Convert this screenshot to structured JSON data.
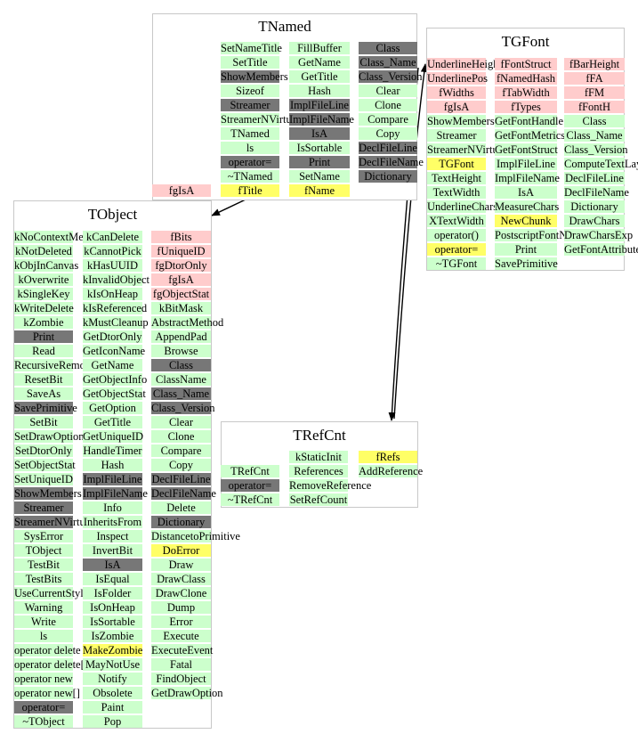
{
  "colors": {
    "public_method": "#ccffcc",
    "protected_method": "#777777",
    "data_member": "#ffcccc",
    "special": "#ffff66",
    "border": "#c8c8c8",
    "arrow": "#000000"
  },
  "fgIsA_floating": {
    "label": "fgIsA",
    "kind": "p"
  },
  "classes": {
    "TNamed": {
      "title": "TNamed",
      "columns": [
        [
          {
            "t": "SetNameTitle",
            "k": "g"
          },
          {
            "t": "SetTitle",
            "k": "g"
          },
          {
            "t": "ShowMembers",
            "k": "d"
          },
          {
            "t": "Sizeof",
            "k": "g"
          },
          {
            "t": "Streamer",
            "k": "d"
          },
          {
            "t": "StreamerNVirtual",
            "k": "g"
          },
          {
            "t": "TNamed",
            "k": "g"
          },
          {
            "t": "ls",
            "k": "g"
          },
          {
            "t": "operator=",
            "k": "d"
          },
          {
            "t": "~TNamed",
            "k": "g"
          },
          {
            "t": "fTitle",
            "k": "y"
          }
        ],
        [
          {
            "t": "FillBuffer",
            "k": "g"
          },
          {
            "t": "GetName",
            "k": "g"
          },
          {
            "t": "GetTitle",
            "k": "g"
          },
          {
            "t": "Hash",
            "k": "g"
          },
          {
            "t": "ImplFileLine",
            "k": "d"
          },
          {
            "t": "ImplFileName",
            "k": "d"
          },
          {
            "t": "IsA",
            "k": "d"
          },
          {
            "t": "IsSortable",
            "k": "g"
          },
          {
            "t": "Print",
            "k": "d"
          },
          {
            "t": "SetName",
            "k": "g"
          },
          {
            "t": "fName",
            "k": "y"
          }
        ],
        [
          {
            "t": "Class",
            "k": "d"
          },
          {
            "t": "Class_Name",
            "k": "d"
          },
          {
            "t": "Class_Version",
            "k": "d"
          },
          {
            "t": "Clear",
            "k": "g"
          },
          {
            "t": "Clone",
            "k": "g"
          },
          {
            "t": "Compare",
            "k": "g"
          },
          {
            "t": "Copy",
            "k": "g"
          },
          {
            "t": "DeclFileLine",
            "k": "d"
          },
          {
            "t": "DeclFileName",
            "k": "d"
          },
          {
            "t": "Dictionary",
            "k": "d"
          }
        ]
      ]
    },
    "TGFont": {
      "title": "TGFont",
      "columns": [
        [
          {
            "t": "UnderlineHeight",
            "k": "p"
          },
          {
            "t": "UnderlinePos",
            "k": "p"
          },
          {
            "t": "fWidths",
            "k": "p"
          },
          {
            "t": "fgIsA",
            "k": "p"
          },
          {
            "t": "ShowMembers",
            "k": "g"
          },
          {
            "t": "Streamer",
            "k": "g"
          },
          {
            "t": "StreamerNVirtual",
            "k": "g"
          },
          {
            "t": "TGFont",
            "k": "y"
          },
          {
            "t": "TextHeight",
            "k": "g"
          },
          {
            "t": "TextWidth",
            "k": "g"
          },
          {
            "t": "UnderlineChars",
            "k": "g"
          },
          {
            "t": "XTextWidth",
            "k": "g"
          },
          {
            "t": "operator()",
            "k": "g"
          },
          {
            "t": "operator=",
            "k": "y"
          },
          {
            "t": "~TGFont",
            "k": "g"
          }
        ],
        [
          {
            "t": "fFontStruct",
            "k": "p"
          },
          {
            "t": "fNamedHash",
            "k": "p"
          },
          {
            "t": "fTabWidth",
            "k": "p"
          },
          {
            "t": "fTypes",
            "k": "p"
          },
          {
            "t": "GetFontHandle",
            "k": "g"
          },
          {
            "t": "GetFontMetrics",
            "k": "g"
          },
          {
            "t": "GetFontStruct",
            "k": "g"
          },
          {
            "t": "ImplFileLine",
            "k": "g"
          },
          {
            "t": "ImplFileName",
            "k": "g"
          },
          {
            "t": "IsA",
            "k": "g"
          },
          {
            "t": "MeasureChars",
            "k": "g"
          },
          {
            "t": "NewChunk",
            "k": "y"
          },
          {
            "t": "PostscriptFontName",
            "k": "g"
          },
          {
            "t": "Print",
            "k": "g"
          },
          {
            "t": "SavePrimitive",
            "k": "g"
          }
        ],
        [
          {
            "t": "fBarHeight",
            "k": "p"
          },
          {
            "t": "fFA",
            "k": "p"
          },
          {
            "t": "fFM",
            "k": "p"
          },
          {
            "t": "fFontH",
            "k": "p"
          },
          {
            "t": "Class",
            "k": "g"
          },
          {
            "t": "Class_Name",
            "k": "g"
          },
          {
            "t": "Class_Version",
            "k": "g"
          },
          {
            "t": "ComputeTextLayout",
            "k": "g"
          },
          {
            "t": "DeclFileLine",
            "k": "g"
          },
          {
            "t": "DeclFileName",
            "k": "g"
          },
          {
            "t": "Dictionary",
            "k": "g"
          },
          {
            "t": "DrawChars",
            "k": "g"
          },
          {
            "t": "DrawCharsExp",
            "k": "g"
          },
          {
            "t": "GetFontAttributes",
            "k": "g"
          }
        ]
      ]
    },
    "TObject": {
      "title": "TObject",
      "columns": [
        [
          {
            "t": "kNoContextMenu",
            "k": "g"
          },
          {
            "t": "kNotDeleted",
            "k": "g"
          },
          {
            "t": "kObjInCanvas",
            "k": "g"
          },
          {
            "t": "kOverwrite",
            "k": "g"
          },
          {
            "t": "kSingleKey",
            "k": "g"
          },
          {
            "t": "kWriteDelete",
            "k": "g"
          },
          {
            "t": "kZombie",
            "k": "g"
          },
          {
            "t": "Print",
            "k": "d"
          },
          {
            "t": "Read",
            "k": "g"
          },
          {
            "t": "RecursiveRemove",
            "k": "g"
          },
          {
            "t": "ResetBit",
            "k": "g"
          },
          {
            "t": "SaveAs",
            "k": "g"
          },
          {
            "t": "SavePrimitive",
            "k": "d"
          },
          {
            "t": "SetBit",
            "k": "g"
          },
          {
            "t": "SetDrawOption",
            "k": "g"
          },
          {
            "t": "SetDtorOnly",
            "k": "g"
          },
          {
            "t": "SetObjectStat",
            "k": "g"
          },
          {
            "t": "SetUniqueID",
            "k": "g"
          },
          {
            "t": "ShowMembers",
            "k": "d"
          },
          {
            "t": "Streamer",
            "k": "d"
          },
          {
            "t": "StreamerNVirtual",
            "k": "d"
          },
          {
            "t": "SysError",
            "k": "g"
          },
          {
            "t": "TObject",
            "k": "g"
          },
          {
            "t": "TestBit",
            "k": "g"
          },
          {
            "t": "TestBits",
            "k": "g"
          },
          {
            "t": "UseCurrentStyle",
            "k": "g"
          },
          {
            "t": "Warning",
            "k": "g"
          },
          {
            "t": "Write",
            "k": "g"
          },
          {
            "t": "ls",
            "k": "g"
          },
          {
            "t": "operator delete",
            "k": "g"
          },
          {
            "t": "operator delete[]",
            "k": "g"
          },
          {
            "t": "operator new",
            "k": "g"
          },
          {
            "t": "operator new[]",
            "k": "g"
          },
          {
            "t": "operator=",
            "k": "d"
          },
          {
            "t": "~TObject",
            "k": "g"
          }
        ],
        [
          {
            "t": "kCanDelete",
            "k": "g"
          },
          {
            "t": "kCannotPick",
            "k": "g"
          },
          {
            "t": "kHasUUID",
            "k": "g"
          },
          {
            "t": "kInvalidObject",
            "k": "g"
          },
          {
            "t": "kIsOnHeap",
            "k": "g"
          },
          {
            "t": "kIsReferenced",
            "k": "g"
          },
          {
            "t": "kMustCleanup",
            "k": "g"
          },
          {
            "t": "GetDtorOnly",
            "k": "g"
          },
          {
            "t": "GetIconName",
            "k": "g"
          },
          {
            "t": "GetName",
            "k": "g"
          },
          {
            "t": "GetObjectInfo",
            "k": "g"
          },
          {
            "t": "GetObjectStat",
            "k": "g"
          },
          {
            "t": "GetOption",
            "k": "g"
          },
          {
            "t": "GetTitle",
            "k": "g"
          },
          {
            "t": "GetUniqueID",
            "k": "g"
          },
          {
            "t": "HandleTimer",
            "k": "g"
          },
          {
            "t": "Hash",
            "k": "g"
          },
          {
            "t": "ImplFileLine",
            "k": "d"
          },
          {
            "t": "ImplFileName",
            "k": "d"
          },
          {
            "t": "Info",
            "k": "g"
          },
          {
            "t": "InheritsFrom",
            "k": "g"
          },
          {
            "t": "Inspect",
            "k": "g"
          },
          {
            "t": "InvertBit",
            "k": "g"
          },
          {
            "t": "IsA",
            "k": "d"
          },
          {
            "t": "IsEqual",
            "k": "g"
          },
          {
            "t": "IsFolder",
            "k": "g"
          },
          {
            "t": "IsOnHeap",
            "k": "g"
          },
          {
            "t": "IsSortable",
            "k": "g"
          },
          {
            "t": "IsZombie",
            "k": "g"
          },
          {
            "t": "MakeZombie",
            "k": "y"
          },
          {
            "t": "MayNotUse",
            "k": "g"
          },
          {
            "t": "Notify",
            "k": "g"
          },
          {
            "t": "Obsolete",
            "k": "g"
          },
          {
            "t": "Paint",
            "k": "g"
          },
          {
            "t": "Pop",
            "k": "g"
          }
        ],
        [
          {
            "t": "fBits",
            "k": "p"
          },
          {
            "t": "fUniqueID",
            "k": "p"
          },
          {
            "t": "fgDtorOnly",
            "k": "p"
          },
          {
            "t": "fgIsA",
            "k": "p"
          },
          {
            "t": "fgObjectStat",
            "k": "p"
          },
          {
            "t": "kBitMask",
            "k": "g"
          },
          {
            "t": "AbstractMethod",
            "k": "g"
          },
          {
            "t": "AppendPad",
            "k": "g"
          },
          {
            "t": "Browse",
            "k": "g"
          },
          {
            "t": "Class",
            "k": "d"
          },
          {
            "t": "ClassName",
            "k": "g"
          },
          {
            "t": "Class_Name",
            "k": "d"
          },
          {
            "t": "Class_Version",
            "k": "d"
          },
          {
            "t": "Clear",
            "k": "g"
          },
          {
            "t": "Clone",
            "k": "g"
          },
          {
            "t": "Compare",
            "k": "g"
          },
          {
            "t": "Copy",
            "k": "g"
          },
          {
            "t": "DeclFileLine",
            "k": "d"
          },
          {
            "t": "DeclFileName",
            "k": "d"
          },
          {
            "t": "Delete",
            "k": "g"
          },
          {
            "t": "Dictionary",
            "k": "d"
          },
          {
            "t": "DistancetoPrimitive",
            "k": "g"
          },
          {
            "t": "DoError",
            "k": "y"
          },
          {
            "t": "Draw",
            "k": "g"
          },
          {
            "t": "DrawClass",
            "k": "g"
          },
          {
            "t": "DrawClone",
            "k": "g"
          },
          {
            "t": "Dump",
            "k": "g"
          },
          {
            "t": "Error",
            "k": "g"
          },
          {
            "t": "Execute",
            "k": "g"
          },
          {
            "t": "ExecuteEvent",
            "k": "g"
          },
          {
            "t": "Fatal",
            "k": "g"
          },
          {
            "t": "FindObject",
            "k": "g"
          },
          {
            "t": "GetDrawOption",
            "k": "g"
          }
        ]
      ]
    },
    "TRefCnt": {
      "title": "TRefCnt",
      "columns": [
        [
          {
            "t": "",
            "k": "w"
          },
          {
            "t": "TRefCnt",
            "k": "g"
          },
          {
            "t": "operator=",
            "k": "d"
          },
          {
            "t": "~TRefCnt",
            "k": "g"
          }
        ],
        [
          {
            "t": "kStaticInit",
            "k": "g"
          },
          {
            "t": "References",
            "k": "g"
          },
          {
            "t": "RemoveReference",
            "k": "g"
          },
          {
            "t": "SetRefCount",
            "k": "g"
          }
        ],
        [
          {
            "t": "fRefs",
            "k": "y"
          },
          {
            "t": "AddReference",
            "k": "g"
          }
        ]
      ]
    }
  }
}
